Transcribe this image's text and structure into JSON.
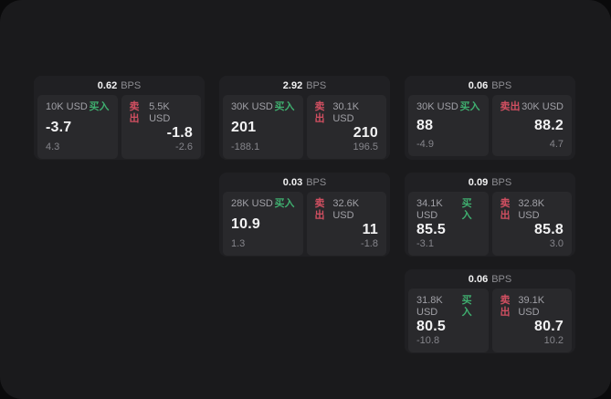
{
  "colors": {
    "buy_accent": "#3fae6f",
    "sell_accent": "#d14f61",
    "surface": "#1a1a1c",
    "card": "#202023",
    "panel": "#29292c"
  },
  "labels": {
    "bps_unit": "BPS",
    "buy": "买入",
    "sell": "卖出"
  },
  "cards": [
    {
      "bps": "0.62",
      "row": 1,
      "col": 1,
      "buy": {
        "amount": "10K USD",
        "price": "-3.7",
        "change": "4.3"
      },
      "sell": {
        "amount": "5.5K USD",
        "price": "-1.8",
        "change": "-2.6"
      }
    },
    {
      "bps": "2.92",
      "row": 1,
      "col": 2,
      "buy": {
        "amount": "30K USD",
        "price": "201",
        "change": "-188.1"
      },
      "sell": {
        "amount": "30.1K USD",
        "price": "210",
        "change": "196.5"
      }
    },
    {
      "bps": "0.06",
      "row": 1,
      "col": 3,
      "buy": {
        "amount": "30K USD",
        "price": "88",
        "change": "-4.9"
      },
      "sell": {
        "amount": "30K USD",
        "price": "88.2",
        "change": "4.7"
      }
    },
    {
      "bps": "0.03",
      "row": 2,
      "col": 2,
      "buy": {
        "amount": "28K USD",
        "price": "10.9",
        "change": "1.3"
      },
      "sell": {
        "amount": "32.6K USD",
        "price": "11",
        "change": "-1.8"
      }
    },
    {
      "bps": "0.09",
      "row": 2,
      "col": 3,
      "buy": {
        "amount": "34.1K USD",
        "price": "85.5",
        "change": "-3.1"
      },
      "sell": {
        "amount": "32.8K USD",
        "price": "85.8",
        "change": "3.0"
      }
    },
    {
      "bps": "0.06",
      "row": 3,
      "col": 3,
      "buy": {
        "amount": "31.8K USD",
        "price": "80.5",
        "change": "-10.8"
      },
      "sell": {
        "amount": "39.1K USD",
        "price": "80.7",
        "change": "10.2"
      }
    }
  ]
}
